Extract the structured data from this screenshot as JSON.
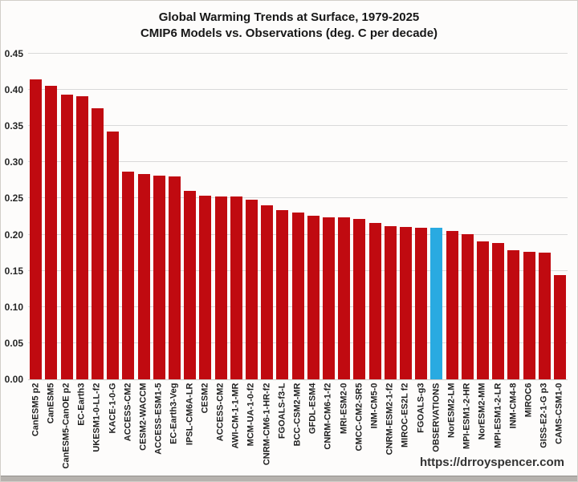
{
  "chart_data": {
    "type": "bar",
    "title": "Global Warming Trends at Surface, 1979-2025",
    "subtitle": "CMIP6 Models vs. Observations (deg. C per decade)",
    "categories": [
      "CanESM5 p2",
      "CanESM5",
      "CanESM5-CanOE p2",
      "EC-Earth3",
      "UKESM1-0-LL-f2",
      "KACE-1-0-G",
      "ACCESS-CM2",
      "CESM2-WACCM",
      "ACCESS-ESM1-5",
      "EC-Earth3-Veg",
      "IPSL-CM6A-LR",
      "CESM2",
      "ACCESS-CM2",
      "AWI-CM-1-1-MR",
      "MCM-UA-1-0-f2",
      "CNRM-CM6-1-HR-f2",
      "FGOALS-f3-L",
      "BCC-CSM2-MR",
      "GFDL-ESM4",
      "CNRM-CM6-1-f2",
      "MRI-ESM2-0",
      "CMCC-CM2-SR5",
      "INM-CM5-0",
      "CNRM-ESM2-1-f2",
      "MIROC-ES2L f2",
      "FGOALS-g3",
      "OBSERVATIONS",
      "NorESM2-LM",
      "MPI-ESM1-2-HR",
      "NorESM2-MM",
      "MPI-ESM1-2-LR",
      "INM-CM4-8",
      "MIROC6",
      "GISS-E2-1-G p3",
      "CAMS-CSM1-0"
    ],
    "values": [
      0.414,
      0.406,
      0.393,
      0.391,
      0.375,
      0.342,
      0.287,
      0.284,
      0.281,
      0.28,
      0.261,
      0.254,
      0.253,
      0.253,
      0.248,
      0.241,
      0.234,
      0.231,
      0.226,
      0.224,
      0.224,
      0.222,
      0.216,
      0.212,
      0.211,
      0.21,
      0.209,
      0.205,
      0.201,
      0.191,
      0.188,
      0.179,
      0.176,
      0.175,
      0.144
    ],
    "highlight_index": 26,
    "highlight_category": "OBSERVATIONS",
    "bar_color": "#C00A10",
    "highlight_color": "#29AAE1",
    "gridline_color": "#D9D9D9",
    "xlabel": "",
    "ylabel": "",
    "ylim": [
      0,
      0.45
    ],
    "yticks": [
      "0.00",
      "0.05",
      "0.10",
      "0.15",
      "0.20",
      "0.25",
      "0.30",
      "0.35",
      "0.40",
      "0.45"
    ],
    "grid": true,
    "legend_position": "none"
  },
  "footer": {
    "url": "https://drroyspencer.com"
  }
}
